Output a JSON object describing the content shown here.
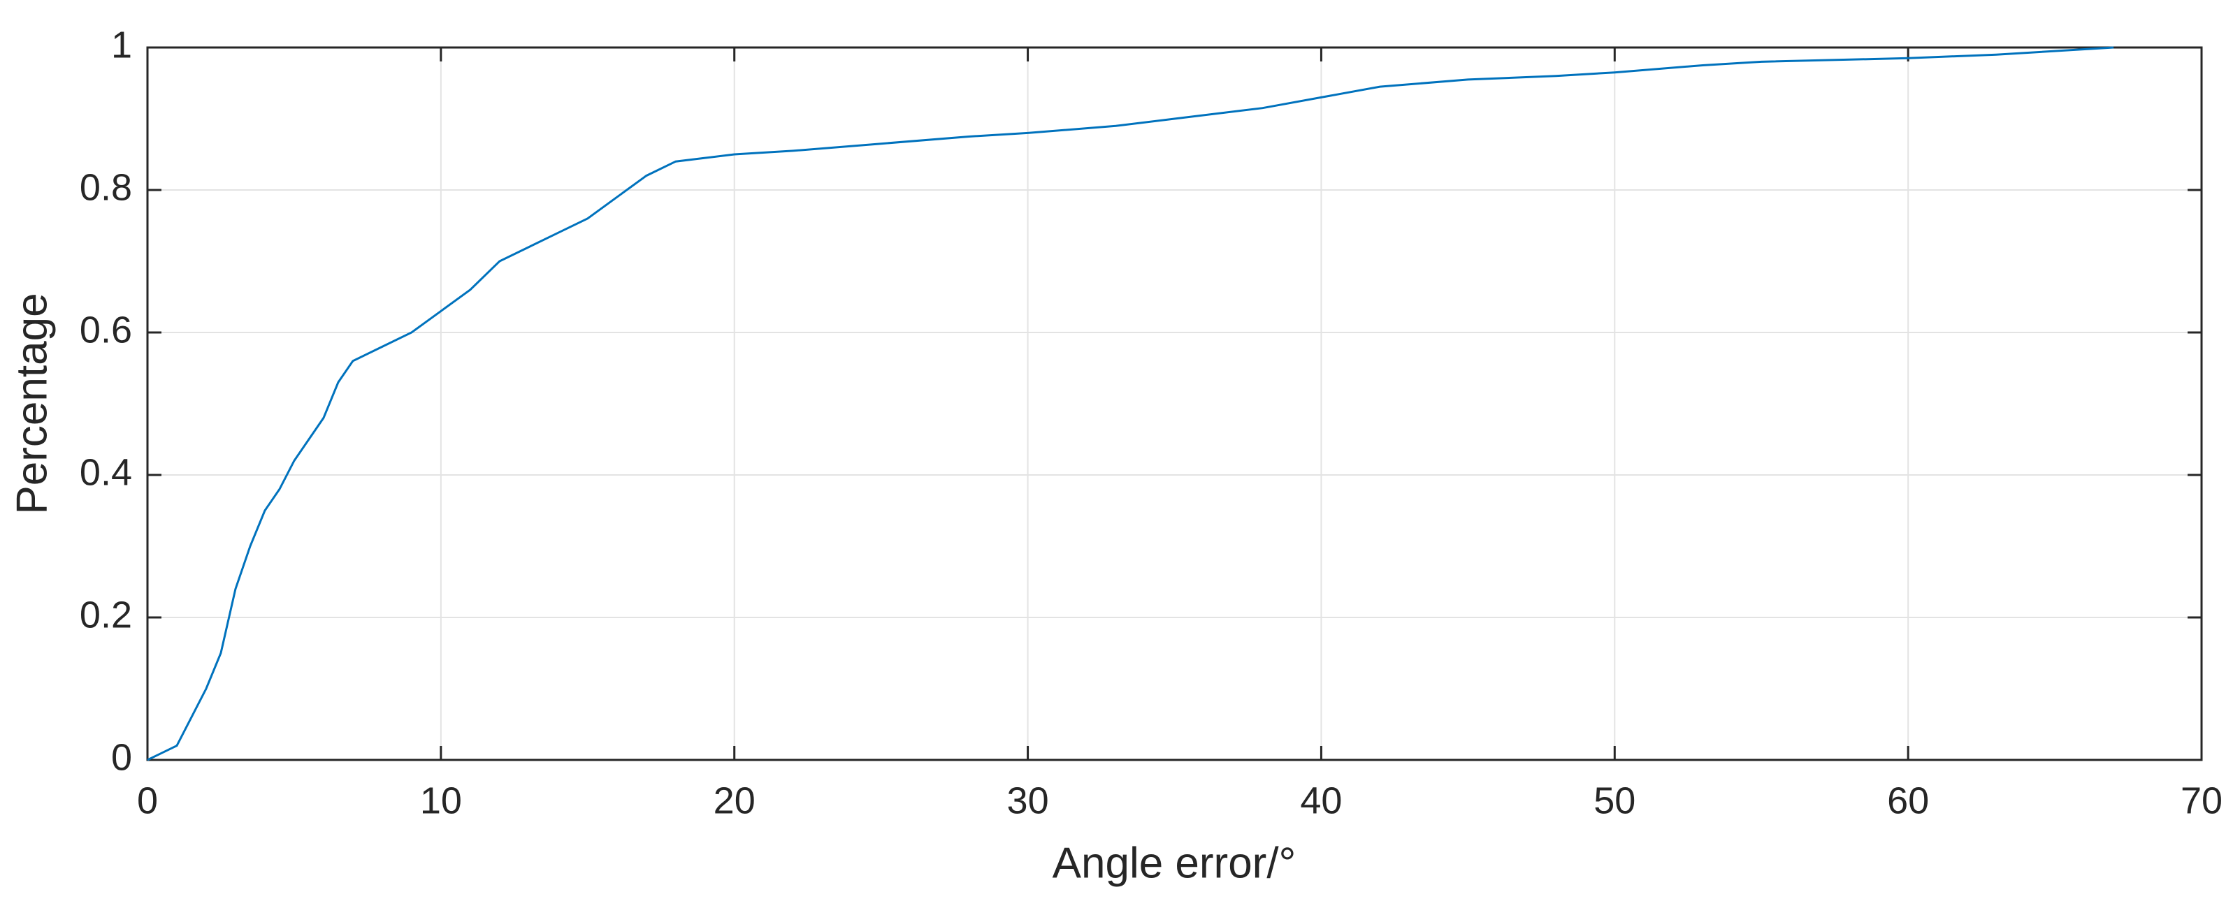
{
  "chart_data": {
    "type": "line",
    "xlabel": "Angle error/°",
    "ylabel": "Percentage",
    "x": [
      0,
      0.5,
      1,
      1.5,
      2,
      2.5,
      3,
      3.5,
      4,
      4.5,
      5,
      5.5,
      6,
      6.5,
      7,
      8,
      9,
      10,
      11,
      12,
      13,
      14,
      15,
      16,
      17,
      18,
      19,
      20,
      22,
      25,
      28,
      30,
      33,
      35,
      38,
      40,
      42,
      45,
      48,
      50,
      53,
      55,
      60,
      63,
      67
    ],
    "values": [
      0,
      0.01,
      0.02,
      0.06,
      0.1,
      0.15,
      0.24,
      0.3,
      0.35,
      0.38,
      0.42,
      0.45,
      0.48,
      0.53,
      0.56,
      0.58,
      0.6,
      0.63,
      0.66,
      0.7,
      0.72,
      0.74,
      0.76,
      0.79,
      0.82,
      0.84,
      0.845,
      0.85,
      0.855,
      0.865,
      0.875,
      0.88,
      0.89,
      0.9,
      0.915,
      0.93,
      0.945,
      0.955,
      0.96,
      0.965,
      0.975,
      0.98,
      0.985,
      0.99,
      1
    ],
    "color": "#0072bd",
    "xlim": [
      0,
      70
    ],
    "xticks": [
      0,
      10,
      20,
      30,
      40,
      50,
      60,
      70
    ],
    "ylim": [
      0,
      1
    ],
    "yticks": [
      0,
      0.2,
      0.4,
      0.6,
      0.8,
      1
    ],
    "grid": true
  }
}
